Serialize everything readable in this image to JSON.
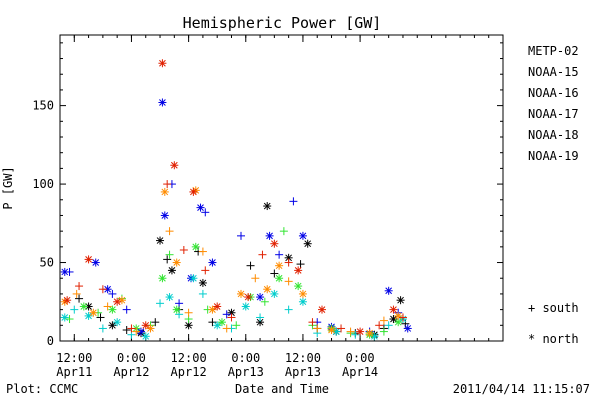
{
  "chart_data": {
    "type": "scatter",
    "title": "Hemispheric Power [GW]",
    "ylabel": "P [GW]",
    "xlabel": "Date and Time",
    "ylim": [
      0,
      195
    ],
    "xlim": [
      "2011-04-11T09:00",
      "2011-04-15T06:00"
    ],
    "yticks": [
      0,
      50,
      100,
      150
    ],
    "xticks": [
      {
        "time": "2011-04-11T12:00",
        "line1": "12:00",
        "line2": "Apr11"
      },
      {
        "time": "2011-04-12T00:00",
        "line1": "0:00",
        "line2": "Apr12"
      },
      {
        "time": "2011-04-12T12:00",
        "line1": "12:00",
        "line2": "Apr12"
      },
      {
        "time": "2011-04-13T00:00",
        "line1": "0:00",
        "line2": "Apr13"
      },
      {
        "time": "2011-04-13T12:00",
        "line1": "12:00",
        "line2": "Apr13"
      },
      {
        "time": "2011-04-14T00:00",
        "line1": "0:00",
        "line2": "Apr14"
      }
    ],
    "series": [
      {
        "name": "METP-02",
        "color": "#000000",
        "points": [
          [
            "2011-04-11T13:00",
            27,
            "south"
          ],
          [
            "2011-04-11T15:00",
            22,
            "north"
          ],
          [
            "2011-04-11T17:30",
            15,
            "south"
          ],
          [
            "2011-04-11T20:00",
            10,
            "north"
          ],
          [
            "2011-04-11T23:00",
            7,
            "south"
          ],
          [
            "2011-04-12T02:00",
            5,
            "north"
          ],
          [
            "2011-04-12T05:00",
            12,
            "south"
          ],
          [
            "2011-04-12T06:00",
            64,
            "north"
          ],
          [
            "2011-04-12T07:30",
            52,
            "south"
          ],
          [
            "2011-04-12T08:30",
            45,
            "north"
          ],
          [
            "2011-04-12T10:00",
            20,
            "south"
          ],
          [
            "2011-04-12T12:00",
            10,
            "north"
          ],
          [
            "2011-04-12T14:00",
            57,
            "south"
          ],
          [
            "2011-04-12T15:00",
            37,
            "north"
          ],
          [
            "2011-04-12T17:00",
            12,
            "south"
          ],
          [
            "2011-04-12T21:00",
            18,
            "north"
          ],
          [
            "2011-04-13T01:00",
            48,
            "south"
          ],
          [
            "2011-04-13T03:00",
            12,
            "north"
          ],
          [
            "2011-04-13T04:30",
            86,
            "north"
          ],
          [
            "2011-04-13T06:00",
            43,
            "south"
          ],
          [
            "2011-04-13T09:00",
            53,
            "north"
          ],
          [
            "2011-04-13T11:30",
            49,
            "south"
          ],
          [
            "2011-04-13T13:00",
            62,
            "north"
          ],
          [
            "2011-04-13T15:00",
            8,
            "south"
          ],
          [
            "2011-04-13T19:00",
            6,
            "north"
          ],
          [
            "2011-04-13T23:00",
            5,
            "south"
          ],
          [
            "2011-04-14T03:00",
            4,
            "north"
          ],
          [
            "2011-04-14T05:00",
            8,
            "south"
          ],
          [
            "2011-04-14T07:00",
            14,
            "north"
          ],
          [
            "2011-04-14T08:30",
            26,
            "north"
          ],
          [
            "2011-04-14T09:30",
            11,
            "south"
          ]
        ]
      },
      {
        "name": "NOAA-15",
        "color": "#0000e6",
        "points": [
          [
            "2011-04-11T10:00",
            44,
            "north"
          ],
          [
            "2011-04-11T11:00",
            44,
            "south"
          ],
          [
            "2011-04-11T16:30",
            50,
            "north"
          ],
          [
            "2011-04-11T19:00",
            33,
            "north"
          ],
          [
            "2011-04-11T20:00",
            30,
            "south"
          ],
          [
            "2011-04-11T23:00",
            20,
            "south"
          ],
          [
            "2011-04-12T02:00",
            6,
            "north"
          ],
          [
            "2011-04-12T06:30",
            152,
            "north"
          ],
          [
            "2011-04-12T07:00",
            80,
            "north"
          ],
          [
            "2011-04-12T08:30",
            100,
            "south"
          ],
          [
            "2011-04-12T10:00",
            24,
            "south"
          ],
          [
            "2011-04-12T12:30",
            40,
            "north"
          ],
          [
            "2011-04-12T14:30",
            85,
            "north"
          ],
          [
            "2011-04-12T15:30",
            82,
            "south"
          ],
          [
            "2011-04-12T17:00",
            50,
            "north"
          ],
          [
            "2011-04-12T20:00",
            17,
            "south"
          ],
          [
            "2011-04-12T23:00",
            67,
            "south"
          ],
          [
            "2011-04-13T03:00",
            28,
            "north"
          ],
          [
            "2011-04-13T05:00",
            67,
            "north"
          ],
          [
            "2011-04-13T07:00",
            55,
            "south"
          ],
          [
            "2011-04-13T10:00",
            89,
            "south"
          ],
          [
            "2011-04-13T12:00",
            67,
            "north"
          ],
          [
            "2011-04-13T15:00",
            12,
            "south"
          ],
          [
            "2011-04-13T18:00",
            9,
            "north"
          ],
          [
            "2011-04-14T02:00",
            6,
            "south"
          ],
          [
            "2011-04-14T06:00",
            32,
            "north"
          ],
          [
            "2011-04-14T08:00",
            18,
            "south"
          ],
          [
            "2011-04-14T10:00",
            8,
            "north"
          ]
        ]
      },
      {
        "name": "NOAA-16",
        "color": "#00cdcd",
        "points": [
          [
            "2011-04-11T10:00",
            15,
            "north"
          ],
          [
            "2011-04-11T12:00",
            20,
            "south"
          ],
          [
            "2011-04-11T15:00",
            16,
            "north"
          ],
          [
            "2011-04-11T18:00",
            8,
            "south"
          ],
          [
            "2011-04-11T21:00",
            12,
            "north"
          ],
          [
            "2011-04-12T00:00",
            4,
            "south"
          ],
          [
            "2011-04-12T03:00",
            3,
            "north"
          ],
          [
            "2011-04-12T06:00",
            24,
            "south"
          ],
          [
            "2011-04-12T08:00",
            28,
            "north"
          ],
          [
            "2011-04-12T10:00",
            17,
            "south"
          ],
          [
            "2011-04-12T13:00",
            40,
            "north"
          ],
          [
            "2011-04-12T15:00",
            30,
            "south"
          ],
          [
            "2011-04-12T18:00",
            10,
            "north"
          ],
          [
            "2011-04-12T21:00",
            8,
            "south"
          ],
          [
            "2011-04-13T00:00",
            22,
            "north"
          ],
          [
            "2011-04-13T03:00",
            15,
            "south"
          ],
          [
            "2011-04-13T06:00",
            30,
            "north"
          ],
          [
            "2011-04-13T09:00",
            20,
            "south"
          ],
          [
            "2011-04-13T12:00",
            25,
            "north"
          ],
          [
            "2011-04-13T15:00",
            5,
            "south"
          ],
          [
            "2011-04-13T19:00",
            6,
            "north"
          ],
          [
            "2011-04-13T23:00",
            4,
            "south"
          ],
          [
            "2011-04-14T03:00",
            3,
            "north"
          ],
          [
            "2011-04-14T06:00",
            10,
            "south"
          ],
          [
            "2011-04-14T09:00",
            14,
            "north"
          ]
        ]
      },
      {
        "name": "NOAA-17",
        "color": "#33e533",
        "points": [
          [
            "2011-04-11T11:00",
            14,
            "south"
          ],
          [
            "2011-04-11T14:00",
            22,
            "north"
          ],
          [
            "2011-04-11T17:00",
            18,
            "south"
          ],
          [
            "2011-04-11T20:00",
            20,
            "north"
          ],
          [
            "2011-04-11T22:00",
            27,
            "south"
          ],
          [
            "2011-04-12T01:00",
            8,
            "north"
          ],
          [
            "2011-04-12T04:00",
            10,
            "south"
          ],
          [
            "2011-04-12T06:30",
            40,
            "north"
          ],
          [
            "2011-04-12T08:00",
            55,
            "south"
          ],
          [
            "2011-04-12T09:30",
            20,
            "north"
          ],
          [
            "2011-04-12T12:00",
            14,
            "south"
          ],
          [
            "2011-04-12T13:30",
            60,
            "north"
          ],
          [
            "2011-04-12T16:00",
            20,
            "south"
          ],
          [
            "2011-04-12T19:00",
            12,
            "north"
          ],
          [
            "2011-04-12T22:00",
            10,
            "south"
          ],
          [
            "2011-04-13T01:00",
            28,
            "north"
          ],
          [
            "2011-04-13T04:00",
            25,
            "south"
          ],
          [
            "2011-04-13T07:00",
            40,
            "north"
          ],
          [
            "2011-04-13T08:00",
            70,
            "south"
          ],
          [
            "2011-04-13T11:00",
            35,
            "north"
          ],
          [
            "2011-04-13T14:00",
            10,
            "south"
          ],
          [
            "2011-04-13T18:00",
            8,
            "north"
          ],
          [
            "2011-04-13T22:00",
            5,
            "south"
          ],
          [
            "2011-04-14T02:00",
            4,
            "north"
          ],
          [
            "2011-04-14T05:00",
            6,
            "south"
          ],
          [
            "2011-04-14T08:00",
            12,
            "north"
          ]
        ]
      },
      {
        "name": "NOAA-18",
        "color": "#ff8c00",
        "points": [
          [
            "2011-04-11T10:00",
            25,
            "north"
          ],
          [
            "2011-04-11T12:30",
            30,
            "south"
          ],
          [
            "2011-04-11T16:00",
            18,
            "north"
          ],
          [
            "2011-04-11T19:00",
            22,
            "south"
          ],
          [
            "2011-04-11T22:00",
            26,
            "north"
          ],
          [
            "2011-04-12T01:00",
            6,
            "south"
          ],
          [
            "2011-04-12T04:00",
            8,
            "north"
          ],
          [
            "2011-04-12T07:00",
            95,
            "north"
          ],
          [
            "2011-04-12T08:00",
            70,
            "south"
          ],
          [
            "2011-04-12T09:30",
            50,
            "north"
          ],
          [
            "2011-04-12T12:00",
            18,
            "south"
          ],
          [
            "2011-04-12T13:30",
            96,
            "north"
          ],
          [
            "2011-04-12T15:00",
            57,
            "south"
          ],
          [
            "2011-04-12T17:00",
            20,
            "north"
          ],
          [
            "2011-04-12T20:00",
            8,
            "south"
          ],
          [
            "2011-04-12T23:00",
            30,
            "north"
          ],
          [
            "2011-04-13T02:00",
            40,
            "south"
          ],
          [
            "2011-04-13T04:30",
            33,
            "north"
          ],
          [
            "2011-04-13T07:00",
            48,
            "north"
          ],
          [
            "2011-04-13T09:00",
            38,
            "south"
          ],
          [
            "2011-04-13T12:00",
            30,
            "north"
          ],
          [
            "2011-04-13T15:00",
            8,
            "south"
          ],
          [
            "2011-04-13T18:00",
            7,
            "north"
          ],
          [
            "2011-04-13T22:00",
            6,
            "south"
          ],
          [
            "2011-04-14T02:00",
            5,
            "north"
          ],
          [
            "2011-04-14T05:00",
            13,
            "south"
          ],
          [
            "2011-04-14T08:00",
            16,
            "north"
          ]
        ]
      },
      {
        "name": "NOAA-19",
        "color": "#e02000",
        "points": [
          [
            "2011-04-11T10:30",
            26,
            "north"
          ],
          [
            "2011-04-11T13:00",
            35,
            "south"
          ],
          [
            "2011-04-11T15:00",
            52,
            "north"
          ],
          [
            "2011-04-11T18:00",
            33,
            "south"
          ],
          [
            "2011-04-11T21:00",
            25,
            "north"
          ],
          [
            "2011-04-12T00:00",
            8,
            "south"
          ],
          [
            "2011-04-12T03:00",
            10,
            "north"
          ],
          [
            "2011-04-12T06:30",
            177,
            "north"
          ],
          [
            "2011-04-12T07:30",
            100,
            "south"
          ],
          [
            "2011-04-12T09:00",
            112,
            "north"
          ],
          [
            "2011-04-12T11:00",
            58,
            "south"
          ],
          [
            "2011-04-12T13:00",
            95,
            "north"
          ],
          [
            "2011-04-12T15:30",
            45,
            "south"
          ],
          [
            "2011-04-12T18:00",
            22,
            "north"
          ],
          [
            "2011-04-12T21:00",
            15,
            "south"
          ],
          [
            "2011-04-13T00:30",
            28,
            "north"
          ],
          [
            "2011-04-13T03:30",
            55,
            "south"
          ],
          [
            "2011-04-13T06:00",
            62,
            "north"
          ],
          [
            "2011-04-13T09:00",
            50,
            "south"
          ],
          [
            "2011-04-13T11:00",
            45,
            "north"
          ],
          [
            "2011-04-13T14:00",
            12,
            "south"
          ],
          [
            "2011-04-13T16:00",
            20,
            "north"
          ],
          [
            "2011-04-13T20:00",
            8,
            "south"
          ],
          [
            "2011-04-14T00:00",
            6,
            "north"
          ],
          [
            "2011-04-14T04:00",
            10,
            "south"
          ],
          [
            "2011-04-14T07:00",
            20,
            "north"
          ],
          [
            "2011-04-14T09:00",
            15,
            "south"
          ]
        ]
      }
    ],
    "markers": {
      "south": "+",
      "north": "*"
    },
    "marker_legend": {
      "south": "+ south",
      "north": "* north"
    },
    "footer": {
      "left": "Plot: CCMC",
      "right": "2011/04/14 11:15:07"
    }
  }
}
